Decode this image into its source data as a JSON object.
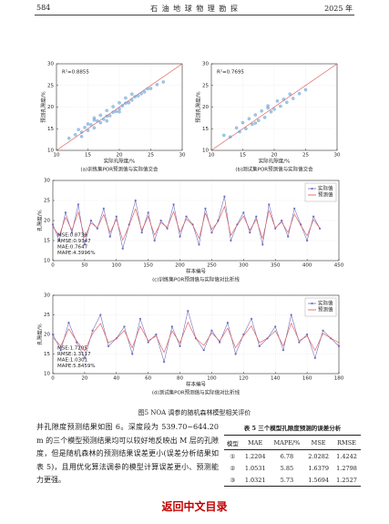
{
  "header": {
    "page": "584",
    "journal": "石 油 地 球 物 理 勘 探",
    "year": "2025 年"
  },
  "figure_caption": "图5  NOA 调参的随机森林模型相关评价",
  "paragraph": "井孔隙度预测结果如图 6。深度段为 539.70~644.20 m 的三个模型预测结果均可以较好地反映出 M 层的孔隙度，但是随机森林的预测结果误差更小(误差分析结果如表 5)，且用优化算法调参的模型计算误差更小、预测能力更强。",
  "table": {
    "title": "表 5  三个模型孔隙度预测的误差分析",
    "columns": [
      "模型",
      "MAE",
      "MAPE/%",
      "MSE",
      "RMSE"
    ],
    "rows": [
      [
        "①",
        "1.2204",
        "6.78",
        "2.0282",
        "1.4242"
      ],
      [
        "②",
        "1.0531",
        "5.85",
        "1.6379",
        "1.2798"
      ],
      [
        "③",
        "1.0321",
        "5.73",
        "1.5694",
        "1.2527"
      ]
    ]
  },
  "footer": "返回中文目录",
  "chart_data": [
    {
      "type": "scatter",
      "caption": "(a)训练集POR预测值与实际值交会",
      "x_label": "实际孔隙度/%",
      "y_label": "预测孔隙度/%",
      "annotations": [
        "R²=0.8855"
      ],
      "color": "#5b9bd5",
      "line_color": "#d9534f",
      "grid": true,
      "xlim": [
        10,
        30
      ],
      "ylim": [
        10,
        30
      ],
      "xticks": [
        10,
        15,
        20,
        25,
        30
      ],
      "yticks": [
        10,
        15,
        20,
        25,
        30
      ],
      "x": [
        12,
        13,
        13.5,
        14,
        14.5,
        15,
        15,
        15.5,
        16,
        16,
        16.5,
        17,
        17,
        17.5,
        18,
        18,
        18.5,
        19,
        19,
        19.5,
        20,
        20,
        20.5,
        21,
        21,
        21.5,
        22,
        22,
        22.5,
        23,
        23.5,
        24,
        24.5,
        25,
        26,
        27,
        16,
        18,
        20,
        14
      ],
      "values": [
        12.8,
        13.6,
        14.8,
        14.2,
        15.3,
        14.6,
        16.1,
        15.9,
        15.2,
        17.0,
        16.8,
        16.4,
        18.1,
        17.2,
        17.9,
        19.2,
        18.0,
        18.8,
        20.1,
        19.0,
        19.6,
        21.0,
        20.3,
        20.9,
        22.1,
        21.0,
        21.6,
        23.0,
        22.4,
        22.6,
        23.1,
        23.5,
        24.2,
        24.3,
        25.2,
        25.8,
        17.5,
        16.8,
        18.9,
        13.2
      ]
    },
    {
      "type": "scatter",
      "caption": "(b)测试集POR预测值与实际值交会",
      "x_label": "实际孔隙度/%",
      "y_label": "预测孔隙度/%",
      "annotations": [
        "R²=0.7695"
      ],
      "color": "#5b9bd5",
      "line_color": "#d9534f",
      "grid": true,
      "xlim": [
        10,
        30
      ],
      "ylim": [
        10,
        30
      ],
      "xticks": [
        10,
        15,
        20,
        25,
        30
      ],
      "yticks": [
        10,
        15,
        20,
        25,
        30
      ],
      "x": [
        12,
        13,
        14,
        14.5,
        15,
        15.5,
        16,
        16.5,
        17,
        17.5,
        18,
        18.5,
        19,
        19.5,
        20,
        20.5,
        21,
        21.5,
        22,
        22.5,
        23,
        24,
        25,
        17,
        19
      ],
      "values": [
        13.5,
        13.1,
        15.2,
        14.3,
        16.4,
        15.0,
        17.3,
        16.0,
        18.2,
        16.9,
        19.1,
        17.6,
        20.3,
        18.9,
        19.5,
        21.4,
        20.2,
        21.8,
        21.1,
        23.0,
        22.0,
        23.1,
        24.0,
        16.3,
        19.8
      ]
    },
    {
      "type": "line",
      "caption": "(c)训练集POR预测值与实际值对比折线",
      "x_label": "样本编号",
      "y_label": "孔隙度/%",
      "annotations": [
        "MSE:0.8739",
        "RMSE:0.9347",
        "MAE:0.7647",
        "MAPE:4.3996%"
      ],
      "grid": true,
      "legend": "upper right",
      "xlim": [
        0,
        450
      ],
      "ylim": [
        10,
        30
      ],
      "xticks": [
        0,
        50,
        100,
        150,
        200,
        250,
        300,
        350,
        400,
        450
      ],
      "yticks": [
        10,
        15,
        20,
        25,
        30
      ],
      "x": [
        0,
        10,
        20,
        30,
        40,
        50,
        60,
        70,
        80,
        90,
        100,
        110,
        120,
        130,
        140,
        150,
        160,
        170,
        180,
        190,
        200,
        210,
        220,
        230,
        240,
        250,
        260,
        270,
        280,
        290,
        300,
        310,
        320,
        330,
        340,
        350,
        360,
        370,
        380,
        390,
        400,
        410,
        420
      ],
      "series": [
        {
          "name": "实际值",
          "color": "#6f6fbf",
          "marker": true,
          "values": [
            19,
            15,
            22,
            17,
            24,
            14,
            20,
            18,
            23,
            16,
            21,
            13,
            19,
            25,
            17,
            22,
            15,
            20,
            18,
            24,
            16,
            21,
            19,
            14,
            23,
            17,
            20,
            26,
            15,
            19,
            22,
            17,
            21,
            14,
            24,
            18,
            20,
            16,
            23,
            19,
            15,
            21,
            18
          ]
        },
        {
          "name": "预测值",
          "color": "#e0504f",
          "marker": false,
          "values": [
            18.5,
            16.2,
            20.8,
            17.6,
            22.1,
            15.8,
            19.4,
            18.2,
            21.5,
            17.0,
            20.3,
            15.1,
            18.8,
            22.9,
            17.6,
            21.0,
            16.4,
            19.5,
            18.3,
            22.2,
            17.1,
            20.4,
            18.9,
            15.6,
            21.8,
            17.8,
            19.7,
            23.5,
            16.3,
            18.9,
            21.1,
            17.6,
            20.3,
            15.5,
            22.4,
            18.2,
            19.6,
            17.0,
            21.6,
            18.8,
            16.2,
            20.2,
            18.1
          ]
        }
      ]
    },
    {
      "type": "line",
      "caption": "(d)测试集POR预测值与实际值对比折线",
      "x_label": "样本编号",
      "y_label": "孔隙度/%",
      "annotations": [
        "MSE:1.7205",
        "RMSE:1.3117",
        "MAE:1.0301",
        "MAPE:5.8459%"
      ],
      "grid": true,
      "legend": "upper right",
      "xlim": [
        0,
        180
      ],
      "ylim": [
        10,
        30
      ],
      "xticks": [
        0,
        20,
        40,
        60,
        80,
        100,
        120,
        140,
        160,
        180
      ],
      "yticks": [
        10,
        15,
        20,
        25,
        30
      ],
      "x": [
        0,
        5,
        10,
        15,
        20,
        25,
        30,
        35,
        40,
        45,
        50,
        55,
        60,
        65,
        70,
        75,
        80,
        85,
        90,
        95,
        100,
        105,
        110,
        115,
        120,
        125,
        130,
        135,
        140,
        145,
        150,
        155,
        160,
        165,
        170,
        175,
        180
      ],
      "series": [
        {
          "name": "实际值",
          "color": "#6f6fbf",
          "marker": true,
          "values": [
            20,
            16,
            23,
            18,
            14,
            21,
            25,
            17,
            19,
            22,
            15,
            24,
            18,
            20,
            13,
            22,
            17,
            26,
            19,
            16,
            21,
            18,
            23,
            15,
            20,
            24,
            17,
            19,
            22,
            16,
            25,
            18,
            20,
            14,
            21,
            19,
            17
          ]
        },
        {
          "name": "预测值",
          "color": "#e0504f",
          "marker": false,
          "values": [
            19.2,
            17.1,
            21.4,
            18.3,
            15.8,
            20.2,
            22.8,
            17.9,
            18.9,
            21.0,
            16.6,
            22.1,
            18.4,
            19.6,
            15.4,
            20.9,
            17.8,
            23.1,
            19.0,
            17.2,
            20.4,
            18.3,
            21.6,
            16.6,
            19.7,
            22.2,
            17.9,
            19.0,
            20.9,
            17.1,
            22.9,
            18.4,
            19.6,
            15.9,
            20.3,
            19.0,
            17.9
          ]
        }
      ]
    }
  ]
}
